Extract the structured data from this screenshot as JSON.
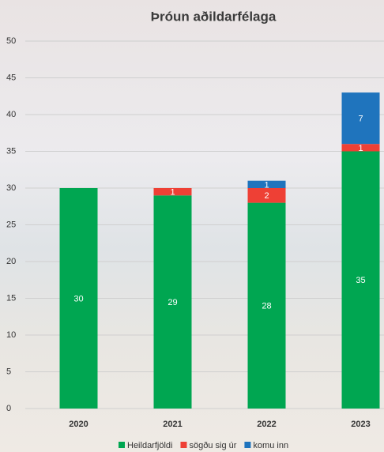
{
  "chart_data": {
    "type": "stacked_bar",
    "title": "Þróun aðildarfélaga",
    "categories": [
      "2020",
      "2021",
      "2022",
      "2023"
    ],
    "series": [
      {
        "name": "Heildarfjöldi",
        "color": "#00a651",
        "values": [
          30,
          29,
          28,
          35
        ]
      },
      {
        "name": "sögðu sig úr",
        "color": "#ee4035",
        "values": [
          null,
          1,
          2,
          1
        ]
      },
      {
        "name": "komu inn",
        "color": "#1f74bd",
        "values": [
          null,
          null,
          1,
          7
        ]
      }
    ],
    "ylim": [
      0,
      50
    ],
    "yticks": [
      0,
      5,
      10,
      15,
      20,
      25,
      30,
      35,
      40,
      45,
      50
    ],
    "grid": true,
    "legend": "bottom"
  }
}
